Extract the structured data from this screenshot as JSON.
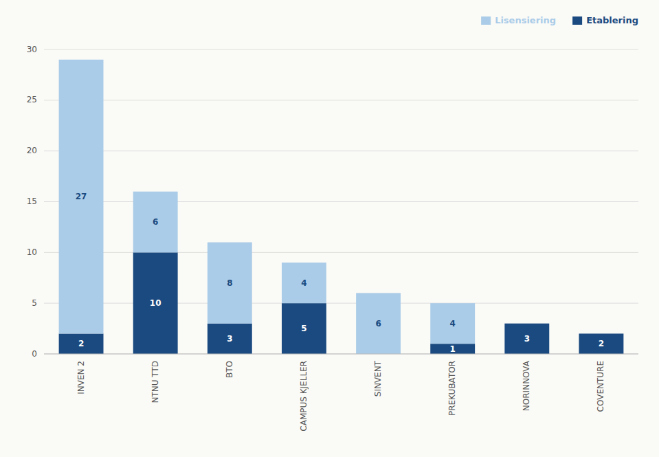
{
  "chart_data": {
    "type": "bar",
    "stacked": true,
    "categories": [
      "INVEN 2",
      "NTNU TTD",
      "BTO",
      "CAMPUS KJELLER",
      "SINVENT",
      "PREKUBATOR",
      "NORINNOVA",
      "COVENTURE"
    ],
    "series": [
      {
        "name": "Etablering",
        "color": "#1a4a80",
        "values": [
          2,
          10,
          3,
          5,
          0,
          1,
          3,
          2
        ]
      },
      {
        "name": "Lisensiering",
        "color": "#aacce8",
        "values": [
          27,
          6,
          8,
          4,
          6,
          4,
          0,
          0
        ]
      }
    ],
    "ylim": [
      0,
      30
    ],
    "yticks": [
      0,
      5,
      10,
      15,
      20,
      25,
      30
    ],
    "grid": true,
    "legend": "upper right",
    "data_labels": true
  }
}
